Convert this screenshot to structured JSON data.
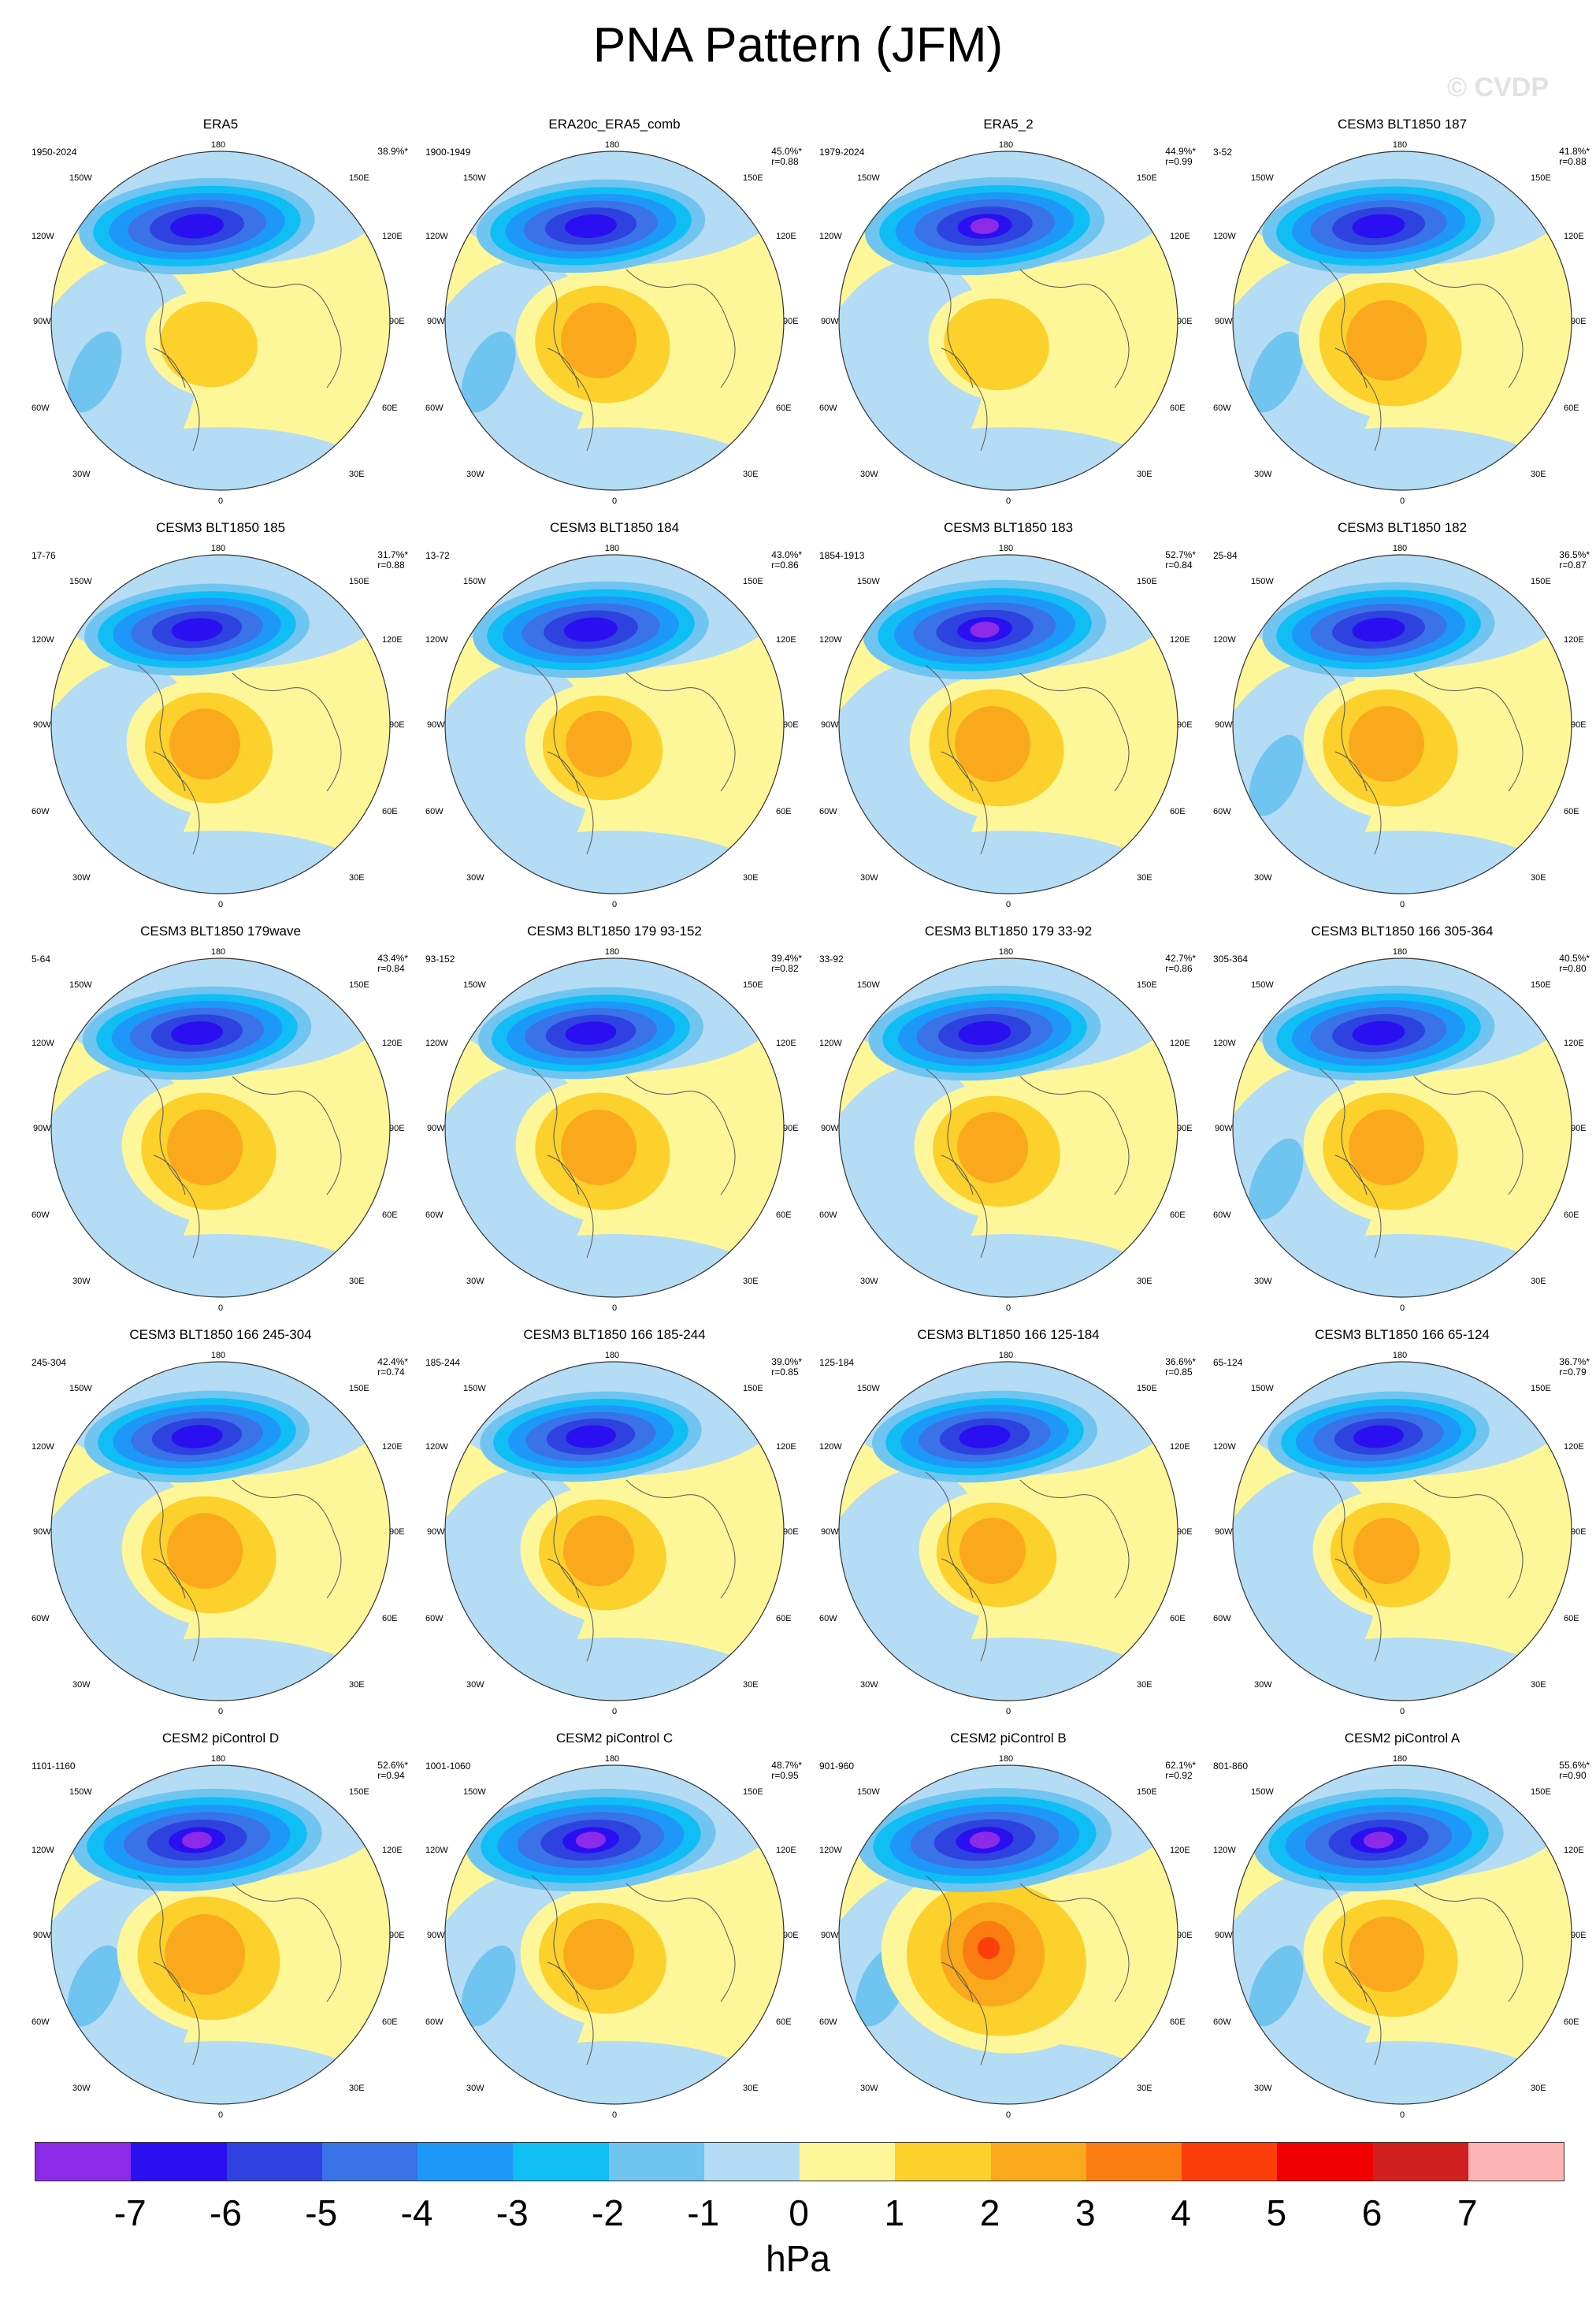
{
  "title": "PNA Pattern (JFM)",
  "watermark": "© CVDP",
  "units": "hPa",
  "map_labels": {
    "top": "180",
    "bottom": "0",
    "left_top": "150W",
    "left_upper": "120W",
    "left_mid": "90W",
    "left_lower": "60W",
    "left_bottom": "30W",
    "right_top": "150E",
    "right_upper": "120E",
    "right_mid": "90E",
    "right_lower": "60E",
    "right_bottom": "30E"
  },
  "colorbar": {
    "colors": [
      "#8b2be8",
      "#2a10f0",
      "#2e42e0",
      "#3a72e8",
      "#1e98f8",
      "#0fbef5",
      "#70c4f0",
      "#b4dcf4",
      "#fdf79a",
      "#fcd12c",
      "#fba91c",
      "#fb7c10",
      "#fc3e0a",
      "#f00000",
      "#d02020",
      "#fbb3b3"
    ],
    "ticks": [
      "-7",
      "-6",
      "-5",
      "-4",
      "-3",
      "-2",
      "-1",
      "0",
      "1",
      "2",
      "3",
      "4",
      "5",
      "6",
      "7"
    ]
  },
  "panels": [
    {
      "title": "ERA5",
      "years": "1950-2024",
      "pct": "38.9%*",
      "r": "",
      "neg": 1.0,
      "pos": 0.55,
      "atl": 0.35
    },
    {
      "title": "ERA20c_ERA5_comb",
      "years": "1900-1949",
      "pct": "45.0%*",
      "r": "r=0.88",
      "neg": 0.9,
      "pos": 0.8,
      "atl": 0.4
    },
    {
      "title": "ERA5_2",
      "years": "1979-2024",
      "pct": "44.9%*",
      "r": "r=0.99",
      "neg": 1.05,
      "pos": 0.6,
      "atl": 0.3
    },
    {
      "title": "CESM3 BLT1850 187",
      "years": "3-52",
      "pct": "41.8%*",
      "r": "r=0.88",
      "neg": 0.95,
      "pos": 0.85,
      "atl": 0.5
    },
    {
      "title": "CESM3 BLT1850 185",
      "years": "17-76",
      "pct": "31.7%*",
      "r": "r=0.88",
      "neg": 0.85,
      "pos": 0.75,
      "atl": 0.3
    },
    {
      "title": "CESM3 BLT1850 184",
      "years": "13-72",
      "pct": "43.0%*",
      "r": "r=0.86",
      "neg": 1.0,
      "pos": 0.7,
      "atl": 0.2
    },
    {
      "title": "CESM3 BLT1850 183",
      "years": "1854-1913",
      "pct": "52.7%*",
      "r": "r=0.84",
      "neg": 1.1,
      "pos": 0.8,
      "atl": 0.3
    },
    {
      "title": "CESM3 BLT1850 182",
      "years": "25-84",
      "pct": "36.5%*",
      "r": "r=0.87",
      "neg": 0.95,
      "pos": 0.8,
      "atl": 0.45
    },
    {
      "title": "CESM3 BLT1850 179wave",
      "years": "5-64",
      "pct": "43.4%*",
      "r": "r=0.84",
      "neg": 0.9,
      "pos": 0.8,
      "atl": 0.2
    },
    {
      "title": "CESM3 BLT1850 179 93-152",
      "years": "93-152",
      "pct": "39.4%*",
      "r": "r=0.82",
      "neg": 0.85,
      "pos": 0.8,
      "atl": 0.2
    },
    {
      "title": "CESM3 BLT1850 179 33-92",
      "years": "33-92",
      "pct": "42.7%*",
      "r": "r=0.86",
      "neg": 0.95,
      "pos": 0.75,
      "atl": 0.3
    },
    {
      "title": "CESM3 BLT1850 166 305-364",
      "years": "305-364",
      "pct": "40.5%*",
      "r": "r=0.80",
      "neg": 0.95,
      "pos": 0.8,
      "atl": 0.4
    },
    {
      "title": "CESM3 BLT1850 166 245-304",
      "years": "245-304",
      "pct": "42.4%*",
      "r": "r=0.74",
      "neg": 0.85,
      "pos": 0.8,
      "atl": 0.3
    },
    {
      "title": "CESM3 BLT1850 166 185-244",
      "years": "185-244",
      "pct": "39.0%*",
      "r": "r=0.85",
      "neg": 0.8,
      "pos": 0.75,
      "atl": 0.2
    },
    {
      "title": "CESM3 BLT1850 166 125-184",
      "years": "125-184",
      "pct": "36.6%*",
      "r": "r=0.85",
      "neg": 0.85,
      "pos": 0.7,
      "atl": 0.25
    },
    {
      "title": "CESM3 BLT1850 166 65-124",
      "years": "65-124",
      "pct": "36.7%*",
      "r": "r=0.79",
      "neg": 0.8,
      "pos": 0.7,
      "atl": 0.3
    },
    {
      "title": "CESM2 piControl D",
      "years": "1101-1160",
      "pct": "52.6%*",
      "r": "r=0.94",
      "neg": 1.2,
      "pos": 0.85,
      "atl": 0.5
    },
    {
      "title": "CESM2 piControl C",
      "years": "1001-1060",
      "pct": "48.7%*",
      "r": "r=0.95",
      "neg": 1.2,
      "pos": 0.75,
      "atl": 0.45
    },
    {
      "title": "CESM2 piControl B",
      "years": "901-960",
      "pct": "62.1%*",
      "r": "r=0.92",
      "neg": 1.25,
      "pos": 1.1,
      "atl": 0.5
    },
    {
      "title": "CESM2 piControl A",
      "years": "801-860",
      "pct": "55.6%*",
      "r": "r=0.90",
      "neg": 1.2,
      "pos": 0.8,
      "atl": 0.35
    }
  ]
}
